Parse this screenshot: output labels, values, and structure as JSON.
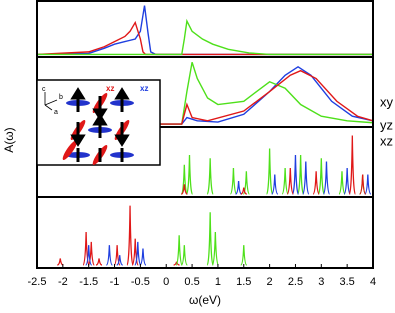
{
  "chart_data": [
    {
      "type": "line",
      "xlim": [
        -2.5,
        4
      ],
      "ylim": [
        -0.03,
        1
      ],
      "series": [
        {
          "color": "#1f3fe0",
          "x": [
            -2.5,
            -1.5,
            -1.2,
            -1.0,
            -0.8,
            -0.6,
            -0.5,
            -0.42,
            -0.35,
            -0.3,
            -0.2,
            4
          ],
          "values": [
            0,
            0.02,
            0.12,
            0.2,
            0.25,
            0.3,
            0.45,
            0.95,
            0.4,
            0.05,
            0,
            0
          ]
        },
        {
          "color": "#e01818",
          "x": [
            -2.5,
            -1.5,
            -1.2,
            -1.0,
            -0.8,
            -0.7,
            -0.6,
            -0.5,
            -0.45,
            -0.4,
            4
          ],
          "values": [
            0,
            0.05,
            0.15,
            0.25,
            0.35,
            0.45,
            0.62,
            0.3,
            0.05,
            0,
            0
          ]
        },
        {
          "color": "#4ee01a",
          "x": [
            -2.5,
            0.3,
            0.35,
            0.4,
            0.5,
            0.7,
            0.9,
            1.2,
            1.6,
            2.0,
            4
          ],
          "values": [
            0,
            0,
            0.3,
            0.65,
            0.45,
            0.3,
            0.2,
            0.1,
            0.03,
            0,
            0
          ]
        }
      ]
    },
    {
      "type": "line",
      "xlim": [
        -2.5,
        4
      ],
      "ylim": [
        -0.03,
        1
      ],
      "y_label": "A(ω)",
      "annotations": [
        "c",
        "b",
        "a",
        "xz",
        "xz"
      ],
      "series": [
        {
          "name": "xy",
          "color": "#1f3fe0",
          "x": [
            -2.5,
            0.3,
            0.4,
            0.6,
            1.0,
            1.5,
            2.0,
            2.3,
            2.55,
            2.8,
            3.2,
            3.6,
            4.0
          ],
          "values": [
            0,
            0,
            0.1,
            0.05,
            0.03,
            0.15,
            0.5,
            0.75,
            0.88,
            0.75,
            0.35,
            0.12,
            0.05
          ]
        },
        {
          "name": "yz",
          "color": "#4ee01a",
          "x": [
            -2.5,
            0.3,
            0.4,
            0.5,
            0.6,
            0.8,
            1.0,
            1.5,
            2.0,
            2.3,
            2.6,
            3.0,
            3.5,
            4.0
          ],
          "values": [
            0,
            0,
            0.5,
            0.95,
            0.7,
            0.4,
            0.3,
            0.35,
            0.65,
            0.55,
            0.3,
            0.12,
            0.05,
            0.02
          ]
        },
        {
          "name": "xz",
          "color": "#e01818",
          "x": [
            -2.5,
            0.3,
            0.4,
            0.5,
            0.8,
            1.5,
            2.0,
            2.4,
            2.6,
            2.9,
            3.3,
            3.7,
            4.0
          ],
          "values": [
            0,
            0,
            0.3,
            0.1,
            0.05,
            0.2,
            0.5,
            0.75,
            0.82,
            0.7,
            0.35,
            0.12,
            0.05
          ]
        }
      ]
    },
    {
      "type": "peaks",
      "xlim": [
        -2.5,
        4
      ],
      "ylim": [
        -0.03,
        1
      ],
      "series": [
        {
          "color": "#4ee01a",
          "x": [
            0.35,
            0.45,
            0.85,
            1.3,
            1.55,
            2.0,
            2.3,
            2.6,
            3.0,
            3.4,
            3.8
          ],
          "values": [
            0.45,
            0.6,
            0.55,
            0.4,
            0.35,
            0.7,
            0.4,
            0.6,
            0.55,
            0.35,
            0.3
          ]
        },
        {
          "color": "#1f3fe0",
          "x": [
            1.4,
            2.1,
            2.5,
            2.7,
            3.1,
            3.5,
            3.9
          ],
          "values": [
            0.2,
            0.3,
            0.6,
            0.5,
            0.5,
            0.4,
            0.3
          ]
        },
        {
          "color": "#e01818",
          "x": [
            0.35,
            1.5,
            2.4,
            2.9,
            3.6,
            3.8
          ],
          "values": [
            0.15,
            0.1,
            0.4,
            0.35,
            0.9,
            0.3
          ]
        }
      ]
    },
    {
      "type": "peaks",
      "xlim": [
        -2.5,
        4
      ],
      "ylim": [
        -0.03,
        1
      ],
      "x_label": "ω(eV)",
      "xticks": [
        -2.5,
        -2,
        -1.5,
        -1,
        -0.5,
        0,
        0.5,
        1,
        1.5,
        2,
        2.5,
        3,
        3.5,
        4
      ],
      "series": [
        {
          "color": "#e01818",
          "x": [
            -2.05,
            -1.55,
            -1.45,
            -1.3,
            -0.95,
            -0.7,
            -0.6,
            0.2
          ],
          "values": [
            0.1,
            0.5,
            0.35,
            0.1,
            0.3,
            0.9,
            0.4,
            0.05
          ]
        },
        {
          "color": "#1f3fe0",
          "x": [
            -1.5,
            -1.1,
            -0.9,
            -0.55,
            -0.45
          ],
          "values": [
            0.3,
            0.3,
            0.15,
            0.35,
            0.25
          ]
        },
        {
          "color": "#4ee01a",
          "x": [
            0.25,
            0.35,
            0.85,
            0.95,
            1.5
          ],
          "values": [
            0.45,
            0.3,
            0.8,
            0.5,
            0.3
          ]
        }
      ]
    }
  ]
}
